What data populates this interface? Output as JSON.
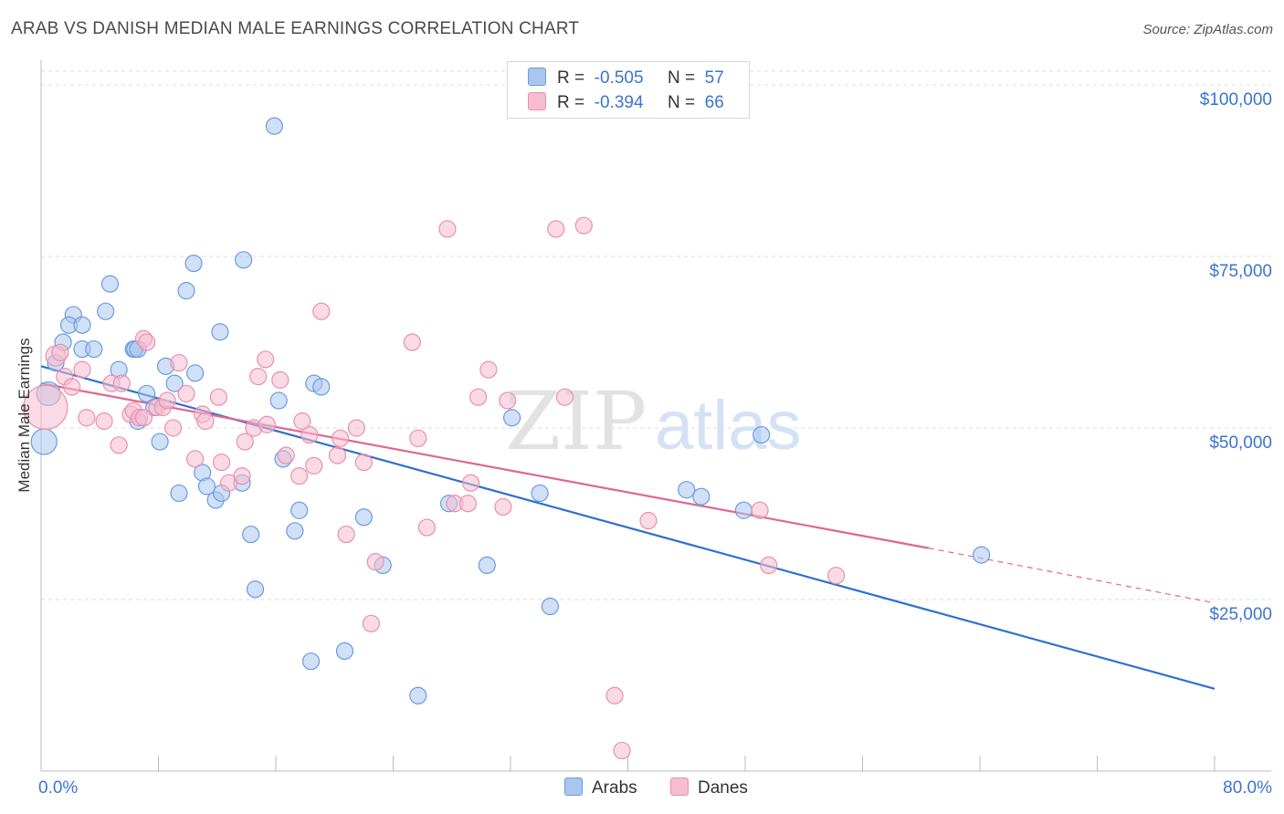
{
  "title": "ARAB VS DANISH MEDIAN MALE EARNINGS CORRELATION CHART",
  "source": "Source: ZipAtlas.com",
  "watermark": {
    "zip": "ZIP",
    "atlas": "atlas"
  },
  "legend": {
    "rows": [
      {
        "r_label": "R =",
        "r_value": "-0.505",
        "n_label": "N =",
        "n_value": "57"
      },
      {
        "r_label": "R =",
        "r_value": "-0.394",
        "n_label": "N =",
        "n_value": "66"
      }
    ]
  },
  "bottom_legend": [
    "Arabs",
    "Danes"
  ],
  "colors": {
    "arabs_fill": "#a9c6ef",
    "arabs_stroke": "#6b9be0",
    "arabs_line": "#2f6fd1",
    "danes_fill": "#f6bcd0",
    "danes_stroke": "#e890ae",
    "danes_line": "#e06690",
    "axis_label": "#3b74d1",
    "grid": "#dddddd"
  },
  "chart_data": {
    "type": "scatter",
    "title": "ARAB VS DANISH MEDIAN MALE EARNINGS CORRELATION CHART",
    "xlabel": "",
    "ylabel": "Median Male Earnings",
    "xlim": [
      0,
      80
    ],
    "ylim": [
      0,
      102000
    ],
    "x_tick_labels": [
      "0.0%",
      "80.0%"
    ],
    "y_ticks": [
      25000,
      50000,
      75000,
      100000
    ],
    "y_tick_labels": [
      "$25,000",
      "$50,000",
      "$75,000",
      "$100,000"
    ],
    "series": [
      {
        "name": "Arabs",
        "R": -0.505,
        "N": 57,
        "trend": {
          "x": [
            0,
            80
          ],
          "y": [
            59000,
            12000
          ]
        },
        "points": [
          [
            0.2,
            48000,
            14
          ],
          [
            0.5,
            55000,
            13
          ],
          [
            1.0,
            59500,
            9
          ],
          [
            1.5,
            62500,
            9
          ],
          [
            2.2,
            66500,
            9
          ],
          [
            1.9,
            65000,
            9
          ],
          [
            2.8,
            65000,
            9
          ],
          [
            2.8,
            61500,
            9
          ],
          [
            3.6,
            61500,
            9
          ],
          [
            4.4,
            67000,
            9
          ],
          [
            4.7,
            71000,
            9
          ],
          [
            5.3,
            58500,
            9
          ],
          [
            6.3,
            61500,
            9
          ],
          [
            6.4,
            61500,
            9
          ],
          [
            6.6,
            51000,
            9
          ],
          [
            6.6,
            61500,
            9
          ],
          [
            7.2,
            55000,
            9
          ],
          [
            7.7,
            53000,
            9
          ],
          [
            8.1,
            48000,
            9
          ],
          [
            8.5,
            59000,
            9
          ],
          [
            9.1,
            56500,
            9
          ],
          [
            9.4,
            40500,
            9
          ],
          [
            9.9,
            70000,
            9
          ],
          [
            10.4,
            74000,
            9
          ],
          [
            10.5,
            58000,
            9
          ],
          [
            11.0,
            43500,
            9
          ],
          [
            11.3,
            41500,
            9
          ],
          [
            11.9,
            39500,
            9
          ],
          [
            12.3,
            40500,
            9
          ],
          [
            12.2,
            64000,
            9
          ],
          [
            13.8,
            74500,
            9
          ],
          [
            13.7,
            42000,
            9
          ],
          [
            14.3,
            34500,
            9
          ],
          [
            14.6,
            26500,
            9
          ],
          [
            15.9,
            94000,
            9
          ],
          [
            16.2,
            54000,
            9
          ],
          [
            16.5,
            45500,
            9
          ],
          [
            17.3,
            35000,
            9
          ],
          [
            17.6,
            38000,
            9
          ],
          [
            18.4,
            16000,
            9
          ],
          [
            18.6,
            56500,
            9
          ],
          [
            19.1,
            56000,
            9
          ],
          [
            20.7,
            17500,
            9
          ],
          [
            22.0,
            37000,
            9
          ],
          [
            23.3,
            30000,
            9
          ],
          [
            25.7,
            11000,
            9
          ],
          [
            27.8,
            39000,
            9
          ],
          [
            30.4,
            30000,
            9
          ],
          [
            32.1,
            51500,
            9
          ],
          [
            34.0,
            40500,
            9
          ],
          [
            34.7,
            24000,
            9
          ],
          [
            44.0,
            41000,
            9
          ],
          [
            45.0,
            40000,
            9
          ],
          [
            47.9,
            38000,
            9
          ],
          [
            49.1,
            49000,
            9
          ],
          [
            64.1,
            31500,
            9
          ]
        ]
      },
      {
        "name": "Danes",
        "R": -0.394,
        "N": 66,
        "trend": {
          "x": [
            0,
            60.5
          ],
          "y": [
            56500,
            32500
          ],
          "dashed_to": [
            80,
            24500
          ]
        },
        "points": [
          [
            0.3,
            53000,
            24
          ],
          [
            1.0,
            60500,
            11
          ],
          [
            1.3,
            61000,
            9
          ],
          [
            1.6,
            57500,
            9
          ],
          [
            2.1,
            56000,
            9
          ],
          [
            2.8,
            58500,
            9
          ],
          [
            3.1,
            51500,
            9
          ],
          [
            4.3,
            51000,
            9
          ],
          [
            4.8,
            56500,
            9
          ],
          [
            5.3,
            47500,
            9
          ],
          [
            5.5,
            56500,
            9
          ],
          [
            6.1,
            52000,
            9
          ],
          [
            6.3,
            52500,
            9
          ],
          [
            6.7,
            51500,
            9
          ],
          [
            7.0,
            51500,
            9
          ],
          [
            7.0,
            63000,
            9
          ],
          [
            7.2,
            62500,
            9
          ],
          [
            7.9,
            53000,
            9
          ],
          [
            8.3,
            53000,
            9
          ],
          [
            8.6,
            54000,
            9
          ],
          [
            9.0,
            50000,
            9
          ],
          [
            9.4,
            59500,
            9
          ],
          [
            9.9,
            55000,
            9
          ],
          [
            10.5,
            45500,
            9
          ],
          [
            11.0,
            52000,
            9
          ],
          [
            11.2,
            51000,
            9
          ],
          [
            12.1,
            54500,
            9
          ],
          [
            12.3,
            45000,
            9
          ],
          [
            12.8,
            42000,
            9
          ],
          [
            13.7,
            43000,
            9
          ],
          [
            13.9,
            48000,
            9
          ],
          [
            14.5,
            50000,
            9
          ],
          [
            14.8,
            57500,
            9
          ],
          [
            15.3,
            60000,
            9
          ],
          [
            15.4,
            50500,
            9
          ],
          [
            16.3,
            57000,
            9
          ],
          [
            16.7,
            46000,
            9
          ],
          [
            17.6,
            43000,
            9
          ],
          [
            17.8,
            51000,
            9
          ],
          [
            18.3,
            49000,
            9
          ],
          [
            18.6,
            44500,
            9
          ],
          [
            19.1,
            67000,
            9
          ],
          [
            20.4,
            48500,
            9
          ],
          [
            20.2,
            46000,
            9
          ],
          [
            20.8,
            34500,
            9
          ],
          [
            21.5,
            50000,
            9
          ],
          [
            22.0,
            45000,
            9
          ],
          [
            22.8,
            30500,
            9
          ],
          [
            22.5,
            21500,
            9
          ],
          [
            25.3,
            62500,
            9
          ],
          [
            25.7,
            48500,
            9
          ],
          [
            26.3,
            35500,
            9
          ],
          [
            27.7,
            79000,
            9
          ],
          [
            28.2,
            39000,
            9
          ],
          [
            29.1,
            39000,
            9
          ],
          [
            29.3,
            42000,
            9
          ],
          [
            29.8,
            54500,
            9
          ],
          [
            30.5,
            58500,
            9
          ],
          [
            31.5,
            38500,
            9
          ],
          [
            31.8,
            54000,
            9
          ],
          [
            35.1,
            79000,
            9
          ],
          [
            35.7,
            54500,
            9
          ],
          [
            37.0,
            79500,
            9
          ],
          [
            39.1,
            11000,
            9
          ],
          [
            39.6,
            3000,
            9
          ],
          [
            41.4,
            36500,
            9
          ],
          [
            49.0,
            38000,
            9
          ],
          [
            49.6,
            30000,
            9
          ],
          [
            54.2,
            28500,
            9
          ]
        ]
      }
    ]
  }
}
